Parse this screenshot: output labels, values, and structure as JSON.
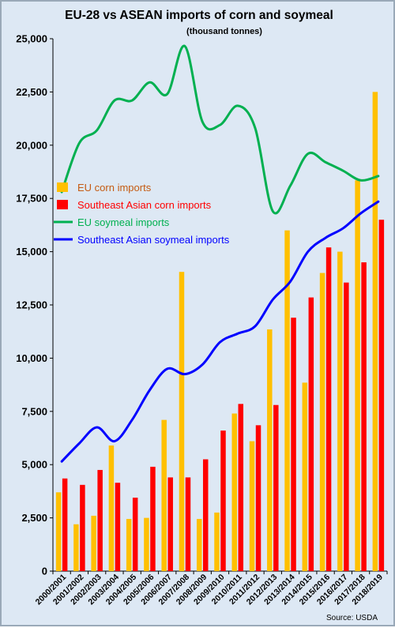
{
  "chart_data": {
    "type": "bar+line",
    "title": "EU-28 vs ASEAN imports of corn and soymeal",
    "subtitle": "(thousand tonnes)",
    "source": "Source: USDA",
    "ylim": [
      0,
      25000
    ],
    "yticks": [
      "0",
      "2,500",
      "5,000",
      "7,500",
      "10,000",
      "12,500",
      "15,000",
      "17,500",
      "20,000",
      "22,500",
      "25,000"
    ],
    "ytick_values": [
      0,
      2500,
      5000,
      7500,
      10000,
      12500,
      15000,
      17500,
      20000,
      22500,
      25000
    ],
    "grid": false,
    "legend_position": "middle-left",
    "categories": [
      "2000/2001",
      "2001/2002",
      "2002/2003",
      "2003/2004",
      "2004/2005",
      "2005/2006",
      "2006/2007",
      "2007/2008",
      "2008/2009",
      "2009/2010",
      "2010/2011",
      "2011/2012",
      "2012/2013",
      "2013/2014",
      "2014/2015",
      "2015/2016",
      "2016/2017",
      "2017/2018",
      "2018/2019"
    ],
    "series": [
      {
        "name": "EU corn imports",
        "kind": "bar",
        "color": "#ffc000",
        "label_color": "#c55a11",
        "values": [
          3700,
          2200,
          2600,
          5900,
          2450,
          2500,
          7100,
          14050,
          2450,
          2750,
          7400,
          6100,
          11350,
          16000,
          8850,
          14000,
          15000,
          18350,
          22500
        ]
      },
      {
        "name": "Southeast Asian corn imports",
        "kind": "bar",
        "color": "#ff0000",
        "label_color": "#ff0000",
        "values": [
          4350,
          4050,
          4750,
          4150,
          3450,
          4900,
          4400,
          4400,
          5250,
          6600,
          7850,
          6850,
          7800,
          11900,
          12850,
          15200,
          13550,
          14500,
          16500
        ]
      },
      {
        "name": "EU soymeal imports",
        "kind": "line",
        "color": "#00b050",
        "label_color": "#00b050",
        "values": [
          17800,
          20100,
          20700,
          22100,
          22100,
          22950,
          22400,
          24650,
          21100,
          20950,
          21850,
          20800,
          16900,
          18100,
          19600,
          19200,
          18800,
          18350,
          18550
        ]
      },
      {
        "name": "Southeast Asian soymeal imports",
        "kind": "line",
        "color": "#0000ff",
        "label_color": "#0000ff",
        "values": [
          5150,
          6000,
          6750,
          6100,
          7100,
          8500,
          9500,
          9250,
          9700,
          10750,
          11150,
          11500,
          12750,
          13600,
          15000,
          15650,
          16100,
          16800,
          17350
        ]
      }
    ]
  }
}
